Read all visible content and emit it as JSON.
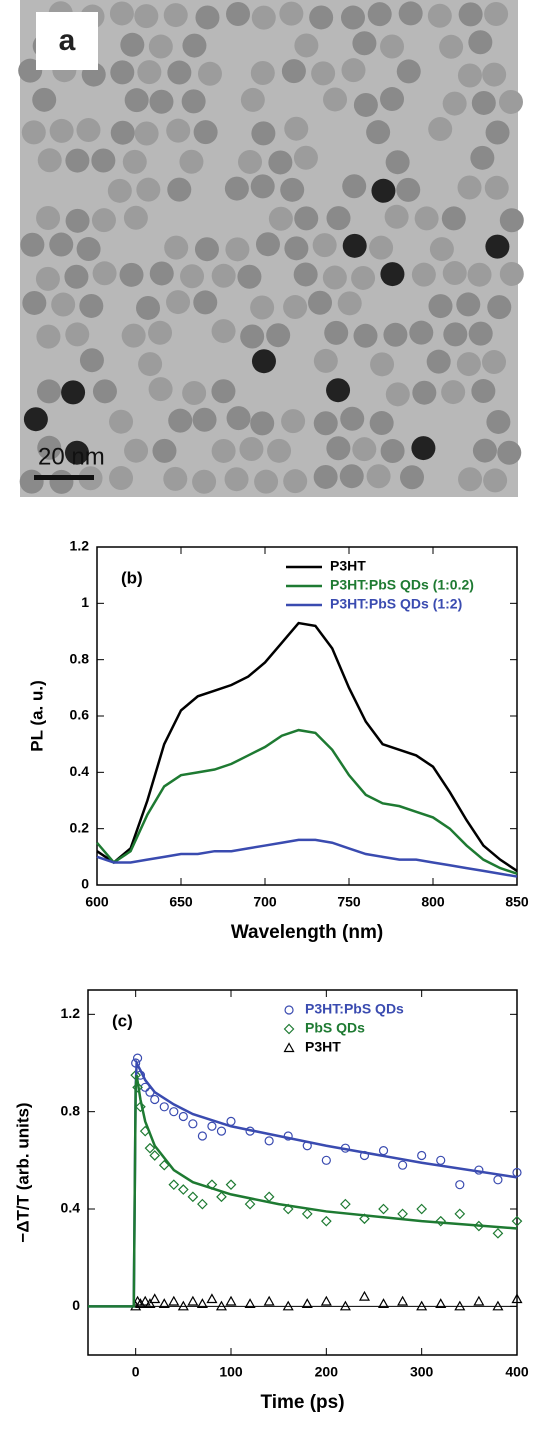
{
  "image_panel": {
    "label": "a",
    "scale_bar": "20 nm"
  },
  "chart_data": [
    {
      "type": "line",
      "label": "(b)",
      "xlabel": "Wavelength (nm)",
      "ylabel": "PL (a. u.)",
      "legend": "upper right",
      "x": [
        600,
        610,
        620,
        630,
        640,
        650,
        660,
        670,
        680,
        690,
        700,
        710,
        720,
        730,
        740,
        750,
        760,
        770,
        780,
        790,
        800,
        810,
        820,
        830,
        840,
        850
      ],
      "series": [
        {
          "name": "P3HT",
          "color": "#000000",
          "values": [
            0.12,
            0.08,
            0.13,
            0.3,
            0.5,
            0.62,
            0.67,
            0.69,
            0.71,
            0.74,
            0.79,
            0.86,
            0.93,
            0.92,
            0.84,
            0.7,
            0.58,
            0.5,
            0.48,
            0.46,
            0.42,
            0.33,
            0.23,
            0.14,
            0.09,
            0.05
          ]
        },
        {
          "name": "P3HT:PbS QDs (1:0.2)",
          "color": "#1e7a32",
          "values": [
            0.15,
            0.08,
            0.12,
            0.25,
            0.35,
            0.39,
            0.4,
            0.41,
            0.43,
            0.46,
            0.49,
            0.53,
            0.55,
            0.54,
            0.48,
            0.39,
            0.32,
            0.29,
            0.28,
            0.26,
            0.24,
            0.2,
            0.14,
            0.09,
            0.06,
            0.04
          ]
        },
        {
          "name": "P3HT:PbS QDs (1:2)",
          "color": "#3a4bb0",
          "values": [
            0.1,
            0.08,
            0.08,
            0.09,
            0.1,
            0.11,
            0.11,
            0.12,
            0.12,
            0.13,
            0.14,
            0.15,
            0.16,
            0.16,
            0.15,
            0.13,
            0.11,
            0.1,
            0.09,
            0.09,
            0.08,
            0.07,
            0.06,
            0.05,
            0.04,
            0.03
          ]
        }
      ],
      "xlim": [
        600,
        850
      ],
      "xticks": [
        600,
        650,
        700,
        750,
        800,
        850
      ],
      "ylim": [
        0,
        1.2
      ],
      "yticks": [
        0,
        0.2,
        0.4,
        0.6,
        0.8,
        1,
        1.2
      ]
    },
    {
      "type": "scatter",
      "label": "(c)",
      "xlabel": "Time (ps)",
      "ylabel": "−ΔT/T (arb. units)",
      "legend": "upper right",
      "series": [
        {
          "name": "P3HT:PbS QDs",
          "color": "#3a4bb0",
          "marker": "circle",
          "x": [
            0,
            2,
            5,
            10,
            15,
            20,
            30,
            40,
            50,
            60,
            70,
            80,
            90,
            100,
            120,
            140,
            160,
            180,
            200,
            220,
            240,
            260,
            280,
            300,
            320,
            340,
            360,
            380,
            400
          ],
          "values": [
            1.0,
            1.02,
            0.95,
            0.9,
            0.88,
            0.85,
            0.82,
            0.8,
            0.78,
            0.75,
            0.7,
            0.74,
            0.72,
            0.76,
            0.72,
            0.68,
            0.7,
            0.66,
            0.6,
            0.65,
            0.62,
            0.64,
            0.58,
            0.62,
            0.6,
            0.5,
            0.56,
            0.52,
            0.55
          ]
        },
        {
          "name": "PbS QDs",
          "color": "#1e7a32",
          "marker": "diamond",
          "x": [
            0,
            2,
            5,
            10,
            15,
            20,
            30,
            40,
            50,
            60,
            70,
            80,
            90,
            100,
            120,
            140,
            160,
            180,
            200,
            220,
            240,
            260,
            280,
            300,
            320,
            340,
            360,
            380,
            400
          ],
          "values": [
            0.95,
            0.9,
            0.82,
            0.72,
            0.65,
            0.62,
            0.58,
            0.5,
            0.48,
            0.45,
            0.42,
            0.5,
            0.45,
            0.5,
            0.42,
            0.45,
            0.4,
            0.38,
            0.35,
            0.42,
            0.36,
            0.4,
            0.38,
            0.4,
            0.35,
            0.38,
            0.33,
            0.3,
            0.35
          ]
        },
        {
          "name": "P3HT",
          "color": "#000000",
          "marker": "triangle",
          "x": [
            0,
            2,
            5,
            10,
            15,
            20,
            30,
            40,
            50,
            60,
            70,
            80,
            90,
            100,
            120,
            140,
            160,
            180,
            200,
            220,
            240,
            260,
            280,
            300,
            320,
            340,
            360,
            380,
            400
          ],
          "values": [
            0,
            0.02,
            0.01,
            0.02,
            0.01,
            0.03,
            0.01,
            0.02,
            0,
            0.02,
            0.01,
            0.03,
            0,
            0.02,
            0.01,
            0.02,
            0,
            0.01,
            0.02,
            0,
            0.04,
            0.01,
            0.02,
            0,
            0.01,
            0,
            0.02,
            0,
            0.03
          ]
        }
      ],
      "fits": [
        {
          "color": "#3a4bb0",
          "x": [
            -50,
            -2,
            0,
            1,
            5,
            10,
            20,
            40,
            60,
            100,
            150,
            200,
            300,
            400
          ],
          "values": [
            0,
            0,
            0.9,
            1.0,
            0.97,
            0.93,
            0.88,
            0.83,
            0.79,
            0.74,
            0.7,
            0.66,
            0.59,
            0.53
          ]
        },
        {
          "color": "#1e7a32",
          "x": [
            -50,
            -2,
            0,
            1,
            5,
            10,
            20,
            40,
            60,
            100,
            150,
            200,
            300,
            400
          ],
          "values": [
            0,
            0,
            0.9,
            0.95,
            0.85,
            0.76,
            0.66,
            0.56,
            0.51,
            0.46,
            0.42,
            0.39,
            0.35,
            0.32
          ]
        }
      ],
      "xlim": [
        -50,
        400
      ],
      "xticks": [
        0,
        100,
        200,
        300,
        400
      ],
      "ylim": [
        -0.2,
        1.3
      ],
      "yticks": [
        0,
        0.4,
        0.8,
        1.2
      ]
    }
  ]
}
